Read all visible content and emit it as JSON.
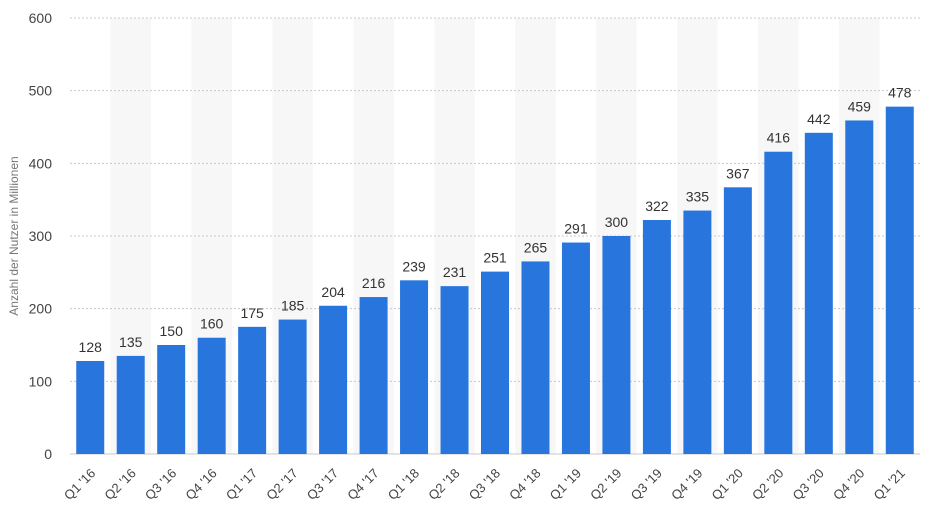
{
  "chart_data": {
    "type": "bar",
    "title": "",
    "xlabel": "",
    "ylabel": "Anzahl der Nutzer in Millionen",
    "ylim": [
      0,
      600
    ],
    "yticks": [
      0,
      100,
      200,
      300,
      400,
      500,
      600
    ],
    "grid": true,
    "legend": "none",
    "categories": [
      "Q1 '16",
      "Q2 '16",
      "Q3 '16",
      "Q4 '16",
      "Q1 '17",
      "Q2 '17",
      "Q3 '17",
      "Q4 '17",
      "Q1 '18",
      "Q2 '18",
      "Q3 '18",
      "Q4 '18",
      "Q1 '19",
      "Q2 '19",
      "Q3 '19",
      "Q4 '19",
      "Q1 '20",
      "Q2 '20",
      "Q3 '20",
      "Q4 '20",
      "Q1 '21"
    ],
    "values": [
      128,
      135,
      150,
      160,
      175,
      185,
      204,
      216,
      239,
      231,
      251,
      265,
      291,
      300,
      322,
      335,
      367,
      416,
      442,
      459,
      478
    ],
    "colors": {
      "bar": "#2876dd",
      "band": "#f7f7f7",
      "grid": "#c8c8c8",
      "axis_text": "#444444"
    }
  }
}
